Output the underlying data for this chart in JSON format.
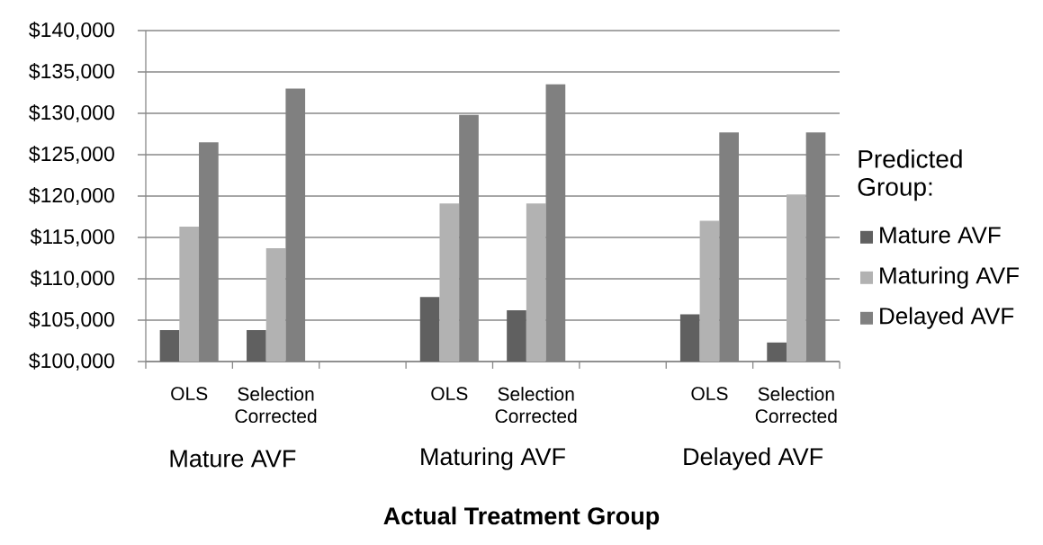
{
  "chart_data": {
    "type": "bar",
    "xlabel": "Actual Treatment Group",
    "legend_title": "Predicted Group:",
    "categories": [
      "OLS",
      "Selection Corrected",
      null,
      "OLS",
      "Selection Corrected",
      null,
      "OLS",
      "Selection Corrected"
    ],
    "annotations": [
      "Mature AVF",
      "Maturing AVF",
      "Delayed AVF"
    ],
    "series": [
      {
        "name": "Mature AVF",
        "color": "#606060",
        "values": [
          103800,
          103800,
          null,
          107800,
          106200,
          null,
          105700,
          102300
        ]
      },
      {
        "name": "Maturing AVF",
        "color": "#b2b2b2",
        "values": [
          116300,
          113700,
          null,
          119100,
          119100,
          null,
          117000,
          120200
        ]
      },
      {
        "name": "Delayed AVF",
        "color": "#808080",
        "values": [
          126500,
          133000,
          null,
          129800,
          133500,
          null,
          127700,
          127700
        ]
      }
    ],
    "ylim": [
      100000,
      140000
    ],
    "yticks": [
      {
        "value": 100000,
        "label": "$100,000"
      },
      {
        "value": 105000,
        "label": "$105,000"
      },
      {
        "value": 110000,
        "label": "$110,000"
      },
      {
        "value": 115000,
        "label": "$115,000"
      },
      {
        "value": 120000,
        "label": "$120,000"
      },
      {
        "value": 125000,
        "label": "$125,000"
      },
      {
        "value": 130000,
        "label": "$130,000"
      },
      {
        "value": 135000,
        "label": "$135,000"
      },
      {
        "value": 140000,
        "label": "$140,000"
      }
    ],
    "grid": "y",
    "legend": "right"
  }
}
